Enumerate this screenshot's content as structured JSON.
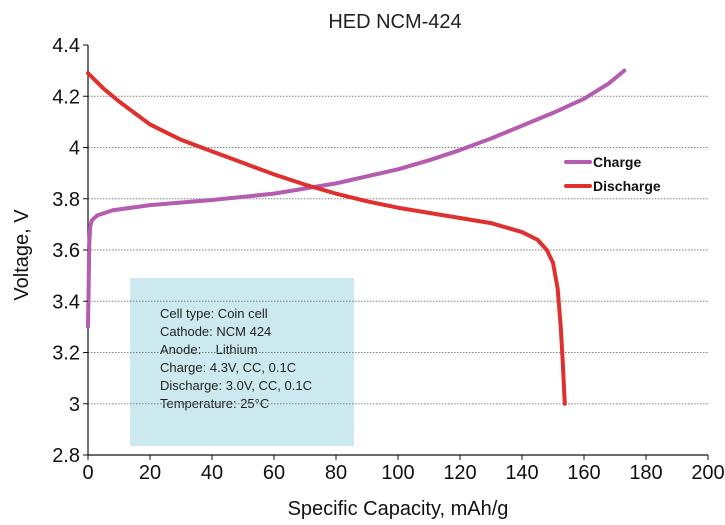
{
  "chart_data": {
    "type": "line",
    "title": "HED NCM-424",
    "xlabel": "Specific Capacity, mAh/g",
    "ylabel": "Voltage, V",
    "xlim": [
      0,
      200
    ],
    "ylim": [
      2.8,
      4.4
    ],
    "x_ticks": [
      0,
      20,
      40,
      60,
      80,
      100,
      120,
      140,
      160,
      180,
      200
    ],
    "y_ticks": [
      2.8,
      3,
      3.2,
      3.4,
      3.6,
      3.8,
      4,
      4.2,
      4.4
    ],
    "y_tick_labels": [
      "2.8",
      "3",
      "3.2",
      "3.4",
      "3.6",
      "3.8",
      "4",
      "4.2",
      "4.4"
    ],
    "grid": "horizontal",
    "legend_position": "right",
    "series": [
      {
        "name": "Charge",
        "color": "#b45cb0",
        "points": [
          [
            0,
            3.3
          ],
          [
            0.2,
            3.45
          ],
          [
            0.4,
            3.62
          ],
          [
            0.7,
            3.69
          ],
          [
            1.2,
            3.715
          ],
          [
            3,
            3.735
          ],
          [
            8,
            3.755
          ],
          [
            20,
            3.775
          ],
          [
            40,
            3.795
          ],
          [
            60,
            3.82
          ],
          [
            80,
            3.86
          ],
          [
            100,
            3.915
          ],
          [
            110,
            3.95
          ],
          [
            120,
            3.99
          ],
          [
            130,
            4.035
          ],
          [
            140,
            4.085
          ],
          [
            150,
            4.135
          ],
          [
            160,
            4.19
          ],
          [
            168,
            4.25
          ],
          [
            173,
            4.3
          ]
        ]
      },
      {
        "name": "Discharge",
        "color": "#e0302d",
        "points": [
          [
            0,
            4.29
          ],
          [
            5,
            4.23
          ],
          [
            10,
            4.18
          ],
          [
            20,
            4.09
          ],
          [
            30,
            4.03
          ],
          [
            40,
            3.985
          ],
          [
            50,
            3.94
          ],
          [
            60,
            3.895
          ],
          [
            70,
            3.855
          ],
          [
            80,
            3.82
          ],
          [
            90,
            3.79
          ],
          [
            100,
            3.765
          ],
          [
            110,
            3.745
          ],
          [
            120,
            3.725
          ],
          [
            130,
            3.705
          ],
          [
            140,
            3.67
          ],
          [
            145,
            3.64
          ],
          [
            148,
            3.6
          ],
          [
            150,
            3.55
          ],
          [
            151.5,
            3.45
          ],
          [
            152.5,
            3.3
          ],
          [
            153.2,
            3.15
          ],
          [
            153.8,
            3.0
          ]
        ]
      }
    ],
    "annotation_box": {
      "background": "#cde9f0",
      "lines": [
        "Cell type: Coin cell",
        "Cathode: NCM 424",
        "Anode:    Lithium",
        "Charge: 4.3V, CC, 0.1C",
        "Discharge: 3.0V, CC, 0.1C",
        "Temperature: 25°C"
      ]
    }
  }
}
